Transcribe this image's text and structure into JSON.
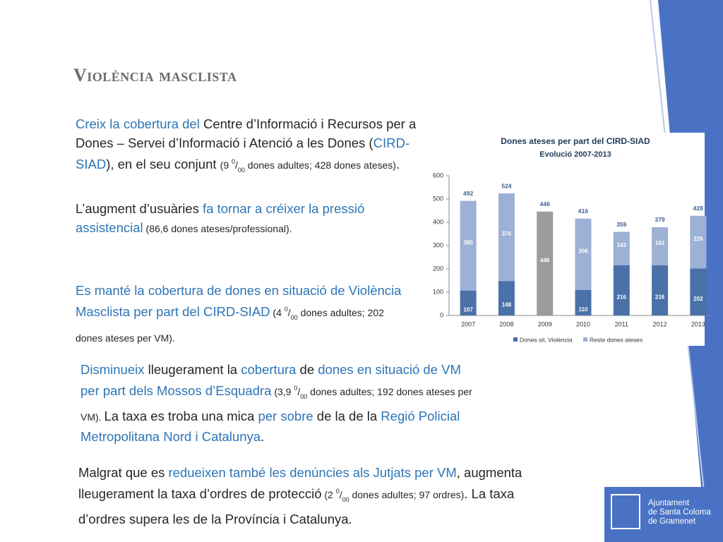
{
  "slide": {
    "title": "Violència masclista",
    "paragraphs": [
      {
        "runs": [
          {
            "text": "Creix la cobertura del",
            "color": "#2e75b6"
          },
          {
            "text": " Centre d’Informació i Recursos per a Dones – Servei d’Informació i Atenció a les Dones ("
          },
          {
            "text": "CIRD-SIAD",
            "color": "#2e75b6"
          },
          {
            "text": "), en el seu conjunt "
          },
          {
            "text": "(9 ",
            "small": true
          },
          {
            "text": "0",
            "sup": true
          },
          {
            "text": "/",
            "small": true
          },
          {
            "text": "00",
            "sub": true
          },
          {
            "text": " dones adultes;  428 dones ateses)",
            "small": true
          },
          {
            "text": "."
          }
        ]
      },
      {
        "runs": [
          {
            "text": "L’augment d’usuàries "
          },
          {
            "text": "fa tornar a créixer la pressió assistencial",
            "color": "#2e75b6"
          },
          {
            "text": " (86,6 dones ateses/professional).",
            "small": true
          }
        ]
      },
      {
        "runs": [
          {
            "text": "Es manté la cobertura de dones en situació de Violència Masclista per part del CIRD-SIAD",
            "color": "#2e75b6"
          },
          {
            "text": " (4 ",
            "small": true
          },
          {
            "text": "0",
            "sup": true
          },
          {
            "text": "/",
            "small": true
          },
          {
            "text": "00",
            "sub": true
          },
          {
            "text": " dones adultes; 202 dones ateses per VM).",
            "small": true
          }
        ]
      },
      {
        "runs": [
          {
            "text": "Disminueix",
            "color": "#2e75b6"
          },
          {
            "text": " lleugerament la "
          },
          {
            "text": "cobertura",
            "color": "#2e75b6"
          },
          {
            "text": " de "
          },
          {
            "text": "dones en situació de VM per part dels Mossos d’Esquadra",
            "color": "#2e75b6"
          },
          {
            "text": " (3,9 ",
            "small": true
          },
          {
            "text": "0",
            "sup": true
          },
          {
            "text": "/",
            "small": true
          },
          {
            "text": "00",
            "sub": true
          },
          {
            "text": " dones adultes; 192 dones ateses per VM). ",
            "small": true
          },
          {
            "text": "La taxa es troba una mica "
          },
          {
            "text": "per sobre",
            "color": "#2e75b6"
          },
          {
            "text": " de la de la "
          },
          {
            "text": "Regió Policial Metropolitana Nord i Catalunya",
            "color": "#2e75b6"
          },
          {
            "text": "."
          }
        ]
      },
      {
        "runs": [
          {
            "text": "Malgrat que es "
          },
          {
            "text": "redueixen també les denúncies als Jutjats per VM",
            "color": "#2e75b6"
          },
          {
            "text": ", augmenta lleugerament la taxa d’ordres de protecció"
          },
          {
            "text": " (2 ",
            "small": true
          },
          {
            "text": "0",
            "sup": true
          },
          {
            "text": "/",
            "small": true
          },
          {
            "text": "00",
            "sub": true
          },
          {
            "text": " dones adultes; 97 ordres)",
            "small": true
          },
          {
            "text": ". La taxa d’ordres supera les de la Província i Catalunya."
          }
        ]
      }
    ],
    "logo": {
      "lines": [
        "Ajuntament",
        "de Santa Coloma",
        "de Gramenet"
      ]
    }
  },
  "chart_data": {
    "type": "stacked_bar",
    "title": "Dones ateses per part del CIRD-SIAD",
    "subtitle": "Evolució 2007-2013",
    "categories": [
      "2007",
      "2008",
      "2009",
      "2010",
      "2011",
      "2012",
      "2013"
    ],
    "series": [
      {
        "name": "Dones sit. Violència",
        "color": "#4a72a8",
        "values": [
          107,
          148,
          null,
          110,
          216,
          216,
          202
        ]
      },
      {
        "name": "Resta dones ateses",
        "color": "#9db0d6",
        "values": [
          385,
          376,
          null,
          306,
          143,
          163,
          226
        ]
      },
      {
        "color": "#9c9c9c",
        "values": [
          null,
          null,
          446,
          null,
          null,
          null,
          null
        ]
      }
    ],
    "totals": [
      492,
      524,
      446,
      416,
      359,
      379,
      428
    ],
    "ylim": [
      0,
      600
    ],
    "yticks": [
      0,
      100,
      200,
      300,
      400,
      500,
      600
    ],
    "legend": "bottom"
  }
}
